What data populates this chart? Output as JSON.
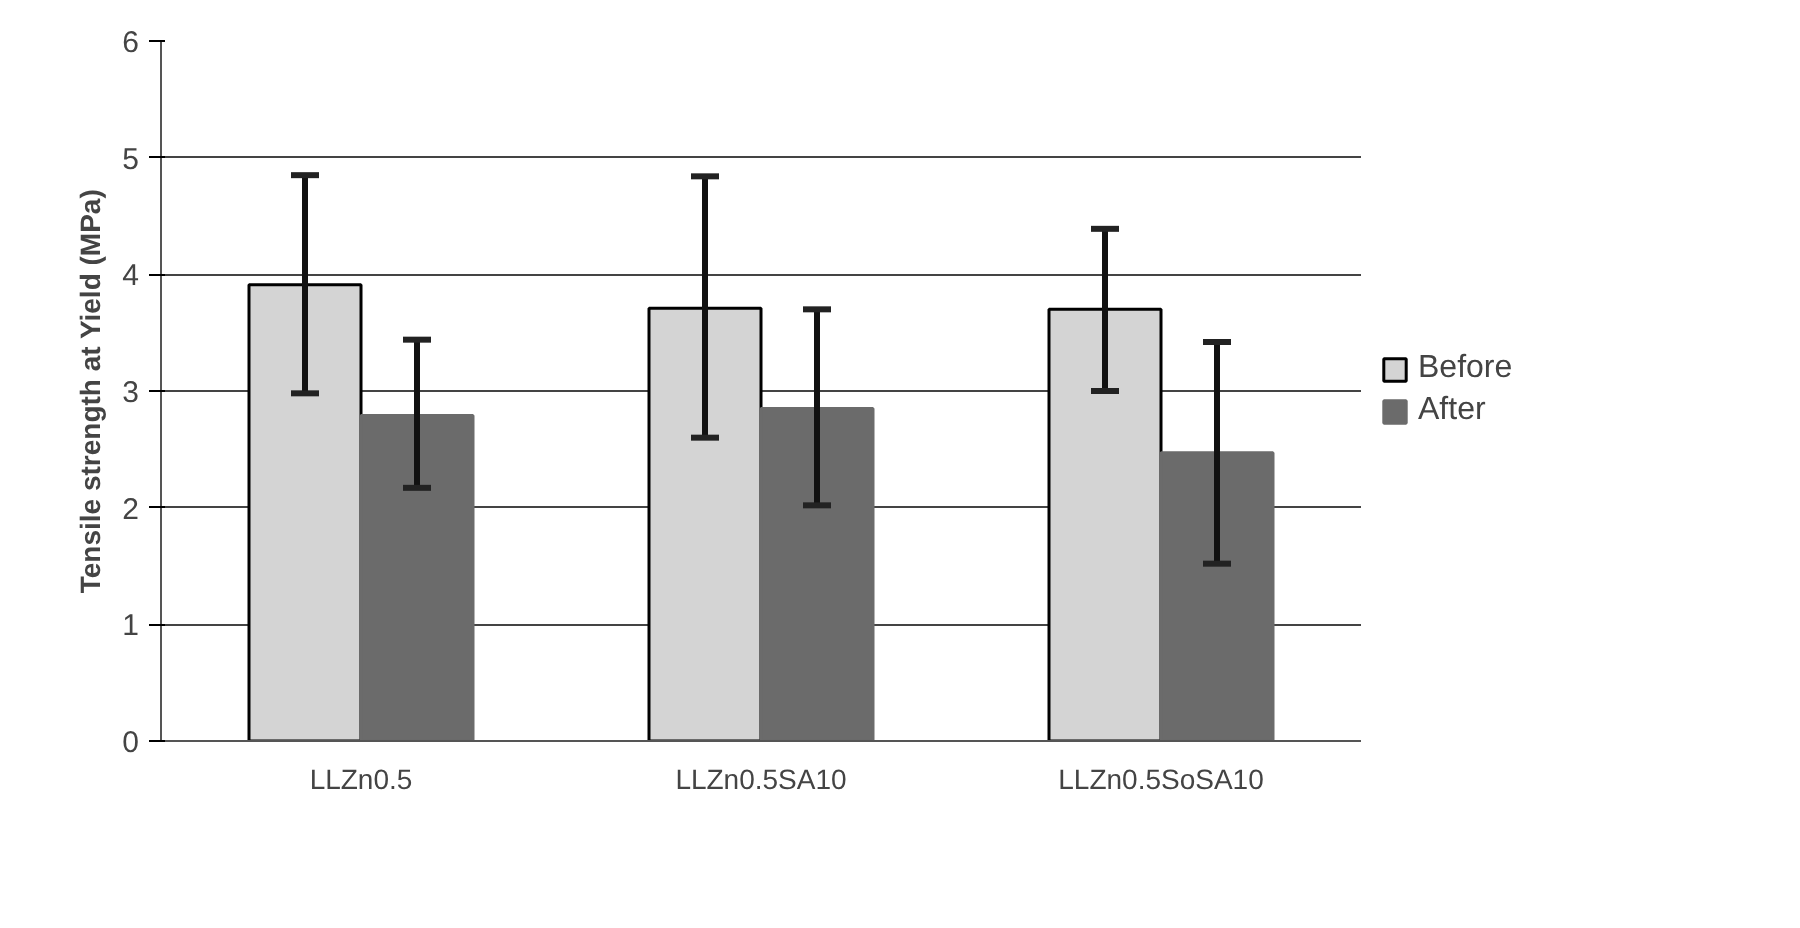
{
  "chart_data": {
    "type": "bar",
    "ylabel": "Tensile strength at Yield (MPa)",
    "categories": [
      "LLZn0.5",
      "LLZn0.5SA10",
      "LLZn0.5SoSA10"
    ],
    "series": [
      {
        "name": "Before",
        "color": "#d4d4d4",
        "values": [
          3.91,
          3.71,
          3.7
        ],
        "errors": [
          [
            2.98,
            4.85
          ],
          [
            2.6,
            4.84
          ],
          [
            3.0,
            4.39
          ]
        ]
      },
      {
        "name": "After",
        "color": "#6b6b6b",
        "values": [
          2.79,
          2.85,
          2.47
        ],
        "errors": [
          [
            2.17,
            3.44
          ],
          [
            2.02,
            3.7
          ],
          [
            1.52,
            3.42
          ]
        ]
      }
    ],
    "ylim": [
      0,
      6
    ],
    "yticks": [
      0,
      1,
      2,
      3,
      4,
      5,
      6
    ],
    "grid": "y",
    "legend": "right"
  }
}
